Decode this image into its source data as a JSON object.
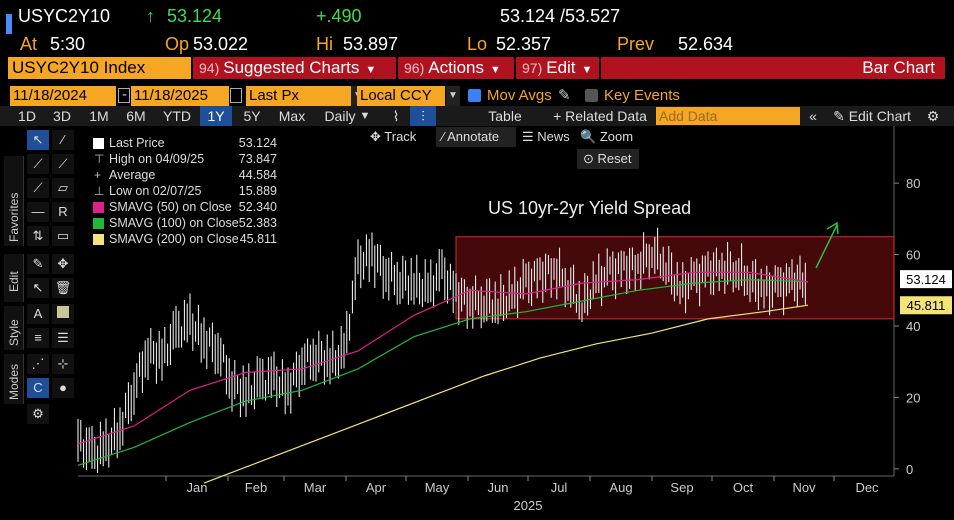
{
  "quote": {
    "ticker": "USYC2Y10",
    "arrow": "↑",
    "last": "53.124",
    "change": "+.490",
    "bid_ask": "53.124 /53.527",
    "at_label": "At",
    "at_time": "5:30",
    "open_label": "Op",
    "open": "53.022",
    "high_label": "Hi",
    "high": "53.897",
    "low_label": "Lo",
    "low": "52.357",
    "prev_label": "Prev",
    "prev": "52.634"
  },
  "menubar": {
    "security": "USYC2Y10 Index",
    "items": [
      {
        "num": "94)",
        "label": "Suggested Charts"
      },
      {
        "num": "96)",
        "label": "Actions"
      },
      {
        "num": "97)",
        "label": "Edit"
      }
    ],
    "chart_type": "Bar Chart"
  },
  "controls": {
    "start_date": "11/18/2024",
    "end_date": "11/18/2025",
    "separator": "-",
    "field": "Last Px",
    "currency": "Local CCY",
    "mov_avgs": "Mov Avgs",
    "key_events": "Key Events"
  },
  "toolbar": {
    "periods": [
      "1D",
      "3D",
      "1M",
      "6M",
      "YTD",
      "1Y",
      "5Y",
      "Max"
    ],
    "selected_period": "1Y",
    "frequency": "Daily",
    "table": "Table",
    "related_data": "+ Related Data",
    "add_data_placeholder": "Add Data",
    "edit_chart": "Edit Chart"
  },
  "side_tabs": [
    "Favorites",
    "Edit",
    "Style",
    "Modes"
  ],
  "chart_tools": {
    "track": "Track",
    "annotate": "Annotate",
    "news": "News",
    "zoom": "Zoom",
    "reset": "Reset"
  },
  "legend": [
    {
      "label": "Last Price",
      "value": "53.124",
      "color": "#ffffff",
      "kind": "box"
    },
    {
      "label": "High on 04/09/25",
      "value": "73.847",
      "kind": "high"
    },
    {
      "label": "Average",
      "value": "44.584",
      "kind": "avg"
    },
    {
      "label": "Low on 02/07/25",
      "value": "15.889",
      "kind": "low"
    },
    {
      "label": "SMAVG (50)  on Close",
      "value": "52.340",
      "color": "#e0208a",
      "kind": "box"
    },
    {
      "label": "SMAVG (100)  on Close",
      "value": "52.383",
      "color": "#1fb83a",
      "kind": "box"
    },
    {
      "label": "SMAVG (200)  on Close",
      "value": "45.811",
      "color": "#f3e37a",
      "kind": "box"
    }
  ],
  "colors": {
    "amber": "#f5a623",
    "menu_red": "#b0121f",
    "price": "#ffffff",
    "sma50": "#e0208a",
    "sma100": "#1fb83a",
    "sma200": "#f3e37a",
    "range_box": "#4a0a0c",
    "range_border": "#d8303a",
    "arrow": "#27c13c"
  },
  "chart_data": {
    "type": "bar",
    "title": "US 10yr-2yr Yield Spread",
    "x_title": "2025",
    "month_labels": [
      "Jan",
      "Feb",
      "Mar",
      "Apr",
      "May",
      "Jun",
      "Jul",
      "Aug",
      "Sep",
      "Oct",
      "Nov",
      "Dec"
    ],
    "y_ticks": [
      0,
      20,
      40,
      60,
      80
    ],
    "ylim": [
      -2,
      96
    ],
    "last_label": "53.124",
    "sma200_label": "45.811",
    "range_band": {
      "low": 42,
      "high": 65
    },
    "price": [
      {
        "x": "2024-11-18",
        "y": 8
      },
      {
        "x": "2024-11-25",
        "y": 4
      },
      {
        "x": "2024-12-02",
        "y": 6
      },
      {
        "x": "2024-12-09",
        "y": 11
      },
      {
        "x": "2024-12-16",
        "y": 23
      },
      {
        "x": "2024-12-23",
        "y": 33
      },
      {
        "x": "2024-12-30",
        "y": 31
      },
      {
        "x": "2025-01-06",
        "y": 38
      },
      {
        "x": "2025-01-13",
        "y": 41
      },
      {
        "x": "2025-01-20",
        "y": 36
      },
      {
        "x": "2025-01-27",
        "y": 34
      },
      {
        "x": "2025-02-03",
        "y": 24
      },
      {
        "x": "2025-02-10",
        "y": 21
      },
      {
        "x": "2025-02-17",
        "y": 24
      },
      {
        "x": "2025-02-24",
        "y": 25
      },
      {
        "x": "2025-03-03",
        "y": 22
      },
      {
        "x": "2025-03-10",
        "y": 30
      },
      {
        "x": "2025-03-17",
        "y": 32
      },
      {
        "x": "2025-03-24",
        "y": 30
      },
      {
        "x": "2025-03-31",
        "y": 32
      },
      {
        "x": "2025-04-07",
        "y": 57
      },
      {
        "x": "2025-04-14",
        "y": 60
      },
      {
        "x": "2025-04-21",
        "y": 55
      },
      {
        "x": "2025-04-28",
        "y": 53
      },
      {
        "x": "2025-05-05",
        "y": 52
      },
      {
        "x": "2025-05-12",
        "y": 50
      },
      {
        "x": "2025-05-19",
        "y": 55
      },
      {
        "x": "2025-05-26",
        "y": 49
      },
      {
        "x": "2025-06-02",
        "y": 47
      },
      {
        "x": "2025-06-09",
        "y": 47
      },
      {
        "x": "2025-06-16",
        "y": 46
      },
      {
        "x": "2025-06-23",
        "y": 48
      },
      {
        "x": "2025-06-30",
        "y": 52
      },
      {
        "x": "2025-07-07",
        "y": 54
      },
      {
        "x": "2025-07-14",
        "y": 56
      },
      {
        "x": "2025-07-21",
        "y": 52
      },
      {
        "x": "2025-07-28",
        "y": 46
      },
      {
        "x": "2025-08-04",
        "y": 52
      },
      {
        "x": "2025-08-11",
        "y": 55
      },
      {
        "x": "2025-08-18",
        "y": 56
      },
      {
        "x": "2025-08-25",
        "y": 57
      },
      {
        "x": "2025-09-01",
        "y": 61
      },
      {
        "x": "2025-09-08",
        "y": 57
      },
      {
        "x": "2025-09-15",
        "y": 50
      },
      {
        "x": "2025-09-22",
        "y": 53
      },
      {
        "x": "2025-09-29",
        "y": 55
      },
      {
        "x": "2025-10-06",
        "y": 56
      },
      {
        "x": "2025-10-13",
        "y": 56
      },
      {
        "x": "2025-10-20",
        "y": 53
      },
      {
        "x": "2025-10-27",
        "y": 50
      },
      {
        "x": "2025-11-03",
        "y": 51
      },
      {
        "x": "2025-11-10",
        "y": 52
      },
      {
        "x": "2025-11-18",
        "y": 53.124
      }
    ],
    "sma50": [
      {
        "x": "2024-11-18",
        "y": 7
      },
      {
        "x": "2024-12-16",
        "y": 12
      },
      {
        "x": "2025-01-13",
        "y": 22
      },
      {
        "x": "2025-02-10",
        "y": 27
      },
      {
        "x": "2025-03-10",
        "y": 28
      },
      {
        "x": "2025-04-07",
        "y": 33
      },
      {
        "x": "2025-05-05",
        "y": 43
      },
      {
        "x": "2025-06-02",
        "y": 50
      },
      {
        "x": "2025-06-30",
        "y": 49
      },
      {
        "x": "2025-07-28",
        "y": 52
      },
      {
        "x": "2025-08-25",
        "y": 53
      },
      {
        "x": "2025-09-22",
        "y": 55
      },
      {
        "x": "2025-10-20",
        "y": 55
      },
      {
        "x": "2025-11-18",
        "y": 52.34
      }
    ],
    "sma100": [
      {
        "x": "2024-11-18",
        "y": 1
      },
      {
        "x": "2024-12-16",
        "y": 6
      },
      {
        "x": "2025-01-13",
        "y": 13
      },
      {
        "x": "2025-02-10",
        "y": 19
      },
      {
        "x": "2025-03-10",
        "y": 22
      },
      {
        "x": "2025-04-07",
        "y": 28
      },
      {
        "x": "2025-05-05",
        "y": 37
      },
      {
        "x": "2025-06-02",
        "y": 42
      },
      {
        "x": "2025-06-30",
        "y": 44
      },
      {
        "x": "2025-07-28",
        "y": 47
      },
      {
        "x": "2025-08-25",
        "y": 50
      },
      {
        "x": "2025-09-22",
        "y": 52
      },
      {
        "x": "2025-10-20",
        "y": 53
      },
      {
        "x": "2025-11-18",
        "y": 52.383
      }
    ],
    "sma200": [
      {
        "x": "2025-01-20",
        "y": -4
      },
      {
        "x": "2025-02-17",
        "y": 2
      },
      {
        "x": "2025-03-17",
        "y": 8
      },
      {
        "x": "2025-04-14",
        "y": 14
      },
      {
        "x": "2025-05-12",
        "y": 20
      },
      {
        "x": "2025-06-09",
        "y": 26
      },
      {
        "x": "2025-07-07",
        "y": 31
      },
      {
        "x": "2025-08-04",
        "y": 35
      },
      {
        "x": "2025-09-01",
        "y": 38
      },
      {
        "x": "2025-09-29",
        "y": 42
      },
      {
        "x": "2025-10-27",
        "y": 44
      },
      {
        "x": "2025-11-18",
        "y": 45.811
      }
    ]
  }
}
